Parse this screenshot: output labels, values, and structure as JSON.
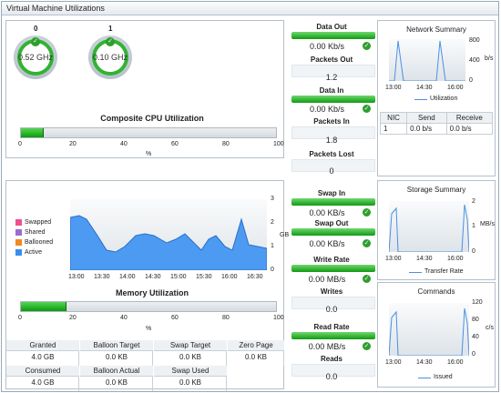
{
  "window": {
    "title": "Virtual Machine Utilizations"
  },
  "cpu": {
    "gauges": [
      {
        "index": "0",
        "value": "0.52 GHz"
      },
      {
        "index": "1",
        "value": "0.10 GHz"
      }
    ],
    "title": "Composite CPU Utilization",
    "percent": 9,
    "ticks": [
      "0",
      "20",
      "40",
      "60",
      "80",
      "100"
    ],
    "unit": "%"
  },
  "network_metrics": {
    "data_out_label": "Data Out",
    "data_out_value": "0.00 Kb/s",
    "packets_out_label": "Packets Out",
    "packets_out_value": "1.2",
    "data_in_label": "Data In",
    "data_in_value": "0.00 Kb/s",
    "packets_in_label": "Packets In",
    "packets_in_value": "1.8",
    "packets_lost_label": "Packets Lost",
    "packets_lost_value": "0"
  },
  "network_summary": {
    "title": "Network Summary",
    "y_ticks": [
      "800",
      "400",
      "0"
    ],
    "y_unit": "b/s",
    "x_ticks": [
      "13:00",
      "14:30",
      "16:00"
    ],
    "legend": "Utilization",
    "table_headers": [
      "NIC",
      "Send",
      "Receive"
    ],
    "table_row": [
      "1",
      "0.0 b/s",
      "0.0 b/s"
    ]
  },
  "memory": {
    "legend": [
      "Swapped",
      "Shared",
      "Ballooned",
      "Active"
    ],
    "legend_colors": [
      "#f04f8e",
      "#9b6bd3",
      "#f08a20",
      "#3a8df0"
    ],
    "y_ticks": [
      "3",
      "2",
      "1",
      "0"
    ],
    "y_unit": "GB",
    "x_ticks": [
      "13:00",
      "13:30",
      "14:00",
      "14:30",
      "15:00",
      "15:30",
      "16:00",
      "16:30"
    ],
    "title": "Memory Utilization",
    "percent": 18,
    "ticks": [
      "0",
      "20",
      "40",
      "60",
      "80",
      "100"
    ],
    "unit": "%",
    "cells": [
      {
        "label": "Granted",
        "value": "4.0 GB"
      },
      {
        "label": "Balloon Target",
        "value": "0.0 KB"
      },
      {
        "label": "Swap Target",
        "value": "0.0 KB"
      },
      {
        "label": "Zero Page",
        "value": "0.0 KB"
      },
      {
        "label": "Consumed",
        "value": "4.0 GB"
      },
      {
        "label": "Balloon Actual",
        "value": "0.0 KB"
      },
      {
        "label": "Swap Used",
        "value": "0.0 KB"
      }
    ]
  },
  "storage_metrics": {
    "swap_in_label": "Swap In",
    "swap_in_value": "0.00 KB/s",
    "swap_out_label": "Swap Out",
    "swap_out_value": "0.00 KB/s",
    "write_rate_label": "Write Rate",
    "write_rate_value": "0.00 MB/s",
    "writes_label": "Writes",
    "writes_value": "0.0",
    "read_rate_label": "Read Rate",
    "read_rate_value": "0.00 MB/s",
    "reads_label": "Reads",
    "reads_value": "0.0"
  },
  "storage_summary": {
    "title": "Storage Summary",
    "y_ticks": [
      "2",
      "1",
      "0"
    ],
    "y_unit": "MB/s",
    "x_ticks": [
      "13:00",
      "14:30",
      "16:00"
    ],
    "legend": "Transfer Rate"
  },
  "commands": {
    "title": "Commands",
    "y_ticks": [
      "120",
      "80",
      "40",
      "0"
    ],
    "y_unit": "c/s",
    "x_ticks": [
      "13:00",
      "14:30",
      "16:00"
    ],
    "legend": "Issued"
  },
  "icons": [
    "check-icon",
    "gauge-icon"
  ]
}
